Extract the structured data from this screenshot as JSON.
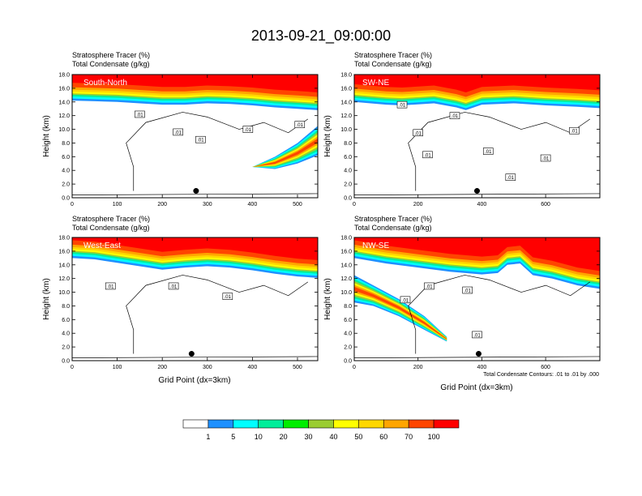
{
  "title": "2013-09-21_09:00:00",
  "footnote": "Total Condensate Contours: .01 to .01 by .000",
  "colorbar": {
    "labels": [
      "1",
      "5",
      "10",
      "20",
      "30",
      "40",
      "50",
      "60",
      "70",
      "100"
    ],
    "colors": [
      "#ffffff",
      "#1e90ff",
      "#00ffff",
      "#00ee9a",
      "#00ee00",
      "#9acd32",
      "#ffff00",
      "#ffd700",
      "#ffa500",
      "#ff4500",
      "#ff0000"
    ]
  },
  "colors": {
    "frame": "#000000",
    "contour": "#000000",
    "marker": "#000000"
  },
  "chart_data": [
    {
      "type": "heatmap",
      "panel": "South-North",
      "title_lines": [
        "Stratosphere Tracer   (%)",
        "Total Condensate   (g/kg)"
      ],
      "ylabel": "Height (km)",
      "xlabel": "",
      "xlim": [
        0,
        545
      ],
      "ylim": [
        0,
        18
      ],
      "xticks": [
        "0",
        "100",
        "200",
        "300",
        "400",
        "500"
      ],
      "yticks": [
        "0.0",
        "2.0",
        "4.0",
        "6.0",
        "8.0",
        "10.0",
        "12.0",
        "14.0",
        "16.0",
        "18.0"
      ],
      "tropopause_km": [
        [
          0,
          14.2
        ],
        [
          50,
          14.1
        ],
        [
          100,
          14.0
        ],
        [
          150,
          13.8
        ],
        [
          200,
          13.6
        ],
        [
          250,
          13.6
        ],
        [
          300,
          13.8
        ],
        [
          350,
          13.7
        ],
        [
          400,
          13.5
        ],
        [
          450,
          13.2
        ],
        [
          500,
          13.0
        ],
        [
          545,
          12.8
        ]
      ],
      "intrusion": {
        "top": [
          [
            400,
            4.5
          ],
          [
            450,
            6.0
          ],
          [
            500,
            8.0
          ],
          [
            545,
            10.5
          ]
        ],
        "bottom": [
          [
            400,
            4.5
          ],
          [
            450,
            4.2
          ],
          [
            500,
            5.0
          ],
          [
            545,
            6.2
          ]
        ]
      },
      "contour_labels": [
        {
          "x": 150,
          "y": 12.2,
          "text": ".01"
        },
        {
          "x": 235,
          "y": 9.6,
          "text": ".01"
        },
        {
          "x": 285,
          "y": 8.5,
          "text": ".01"
        },
        {
          "x": 390,
          "y": 10.0,
          "text": ".01"
        },
        {
          "x": 505,
          "y": 10.7,
          "text": ".01"
        }
      ],
      "marker": [
        275,
        1.0
      ]
    },
    {
      "type": "heatmap",
      "panel": "SW-NE",
      "title_lines": [
        "Stratosphere Tracer   (%)",
        "Total Condensate   (g/kg)"
      ],
      "ylabel": "Height (km)",
      "xlabel": "",
      "xlim": [
        0,
        770
      ],
      "ylim": [
        0,
        18
      ],
      "xticks": [
        "0",
        "200",
        "400",
        "600"
      ],
      "yticks": [
        "0.0",
        "2.0",
        "4.0",
        "6.0",
        "8.0",
        "10.0",
        "12.0",
        "14.0",
        "16.0",
        "18.0"
      ],
      "tropopause_km": [
        [
          0,
          14.0
        ],
        [
          100,
          13.6
        ],
        [
          150,
          13.5
        ],
        [
          250,
          13.8
        ],
        [
          320,
          13.2
        ],
        [
          350,
          12.8
        ],
        [
          400,
          13.6
        ],
        [
          500,
          13.8
        ],
        [
          600,
          13.5
        ],
        [
          700,
          13.3
        ],
        [
          770,
          13.1
        ]
      ],
      "intrusion": null,
      "contour_labels": [
        {
          "x": 150,
          "y": 13.6,
          "text": ".01"
        },
        {
          "x": 200,
          "y": 9.5,
          "text": ".01"
        },
        {
          "x": 230,
          "y": 6.3,
          "text": ".01"
        },
        {
          "x": 315,
          "y": 12.0,
          "text": ".01"
        },
        {
          "x": 420,
          "y": 6.8,
          "text": ".01"
        },
        {
          "x": 490,
          "y": 3.0,
          "text": ".01"
        },
        {
          "x": 600,
          "y": 5.8,
          "text": ".01"
        },
        {
          "x": 690,
          "y": 9.8,
          "text": ".01"
        }
      ],
      "marker": [
        385,
        1.0
      ]
    },
    {
      "type": "heatmap",
      "panel": "West-East",
      "title_lines": [
        "Stratosphere Tracer   (%)",
        "Total Condensate   (g/kg)"
      ],
      "ylabel": "Height (km)",
      "xlabel": "Grid Point (dx=3km)",
      "xlim": [
        0,
        545
      ],
      "ylim": [
        0,
        18
      ],
      "xticks": [
        "0",
        "100",
        "200",
        "300",
        "400",
        "500"
      ],
      "yticks": [
        "0.0",
        "2.0",
        "4.0",
        "6.0",
        "8.0",
        "10.0",
        "12.0",
        "14.0",
        "16.0",
        "18.0"
      ],
      "tropopause_km": [
        [
          0,
          15.0
        ],
        [
          50,
          14.8
        ],
        [
          100,
          14.3
        ],
        [
          150,
          13.8
        ],
        [
          200,
          13.3
        ],
        [
          250,
          13.6
        ],
        [
          300,
          13.8
        ],
        [
          350,
          13.6
        ],
        [
          400,
          13.2
        ],
        [
          450,
          12.7
        ],
        [
          500,
          12.3
        ],
        [
          545,
          12.1
        ]
      ],
      "intrusion": null,
      "contour_labels": [
        {
          "x": 85,
          "y": 10.9,
          "text": ".01"
        },
        {
          "x": 225,
          "y": 10.9,
          "text": ".01"
        },
        {
          "x": 345,
          "y": 9.4,
          "text": ".01"
        }
      ],
      "marker": [
        265,
        1.0
      ]
    },
    {
      "type": "heatmap",
      "panel": "NW-SE",
      "title_lines": [
        "Stratosphere Tracer   (%)",
        "Total Condensate   (g/kg)"
      ],
      "ylabel": "Height (km)",
      "xlabel": "Grid Point (dx=3km)",
      "xlim": [
        0,
        770
      ],
      "ylim": [
        0,
        18
      ],
      "xticks": [
        "0",
        "200",
        "400",
        "600"
      ],
      "yticks": [
        "0.0",
        "2.0",
        "4.0",
        "6.0",
        "8.0",
        "10.0",
        "12.0",
        "14.0",
        "16.0",
        "18.0"
      ],
      "tropopause_km": [
        [
          0,
          15.0
        ],
        [
          100,
          14.2
        ],
        [
          200,
          13.6
        ],
        [
          300,
          13.0
        ],
        [
          400,
          12.6
        ],
        [
          450,
          12.8
        ],
        [
          480,
          14.0
        ],
        [
          520,
          14.2
        ],
        [
          560,
          12.5
        ],
        [
          620,
          12.0
        ],
        [
          700,
          11.0
        ],
        [
          770,
          10.5
        ]
      ],
      "intrusion": {
        "top": [
          [
            0,
            12.5
          ],
          [
            60,
            11.0
          ],
          [
            140,
            9.0
          ],
          [
            220,
            6.5
          ],
          [
            290,
            3.5
          ]
        ],
        "bottom": [
          [
            0,
            8.5
          ],
          [
            60,
            8.0
          ],
          [
            140,
            6.5
          ],
          [
            220,
            4.5
          ],
          [
            290,
            2.8
          ]
        ]
      },
      "contour_labels": [
        {
          "x": 160,
          "y": 8.9,
          "text": ".01"
        },
        {
          "x": 235,
          "y": 10.9,
          "text": ".01"
        },
        {
          "x": 355,
          "y": 10.3,
          "text": ".01"
        },
        {
          "x": 385,
          "y": 3.8,
          "text": ".01"
        }
      ],
      "marker": [
        390,
        1.0
      ]
    }
  ]
}
